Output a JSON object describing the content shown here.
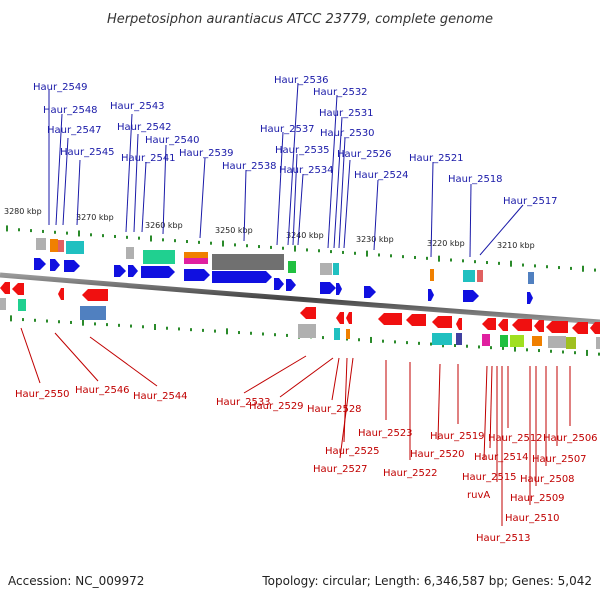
{
  "title": "Herpetosiphon aurantiacus ATCC 23779, complete genome",
  "accession": "Accession: NC_009972",
  "topology": "Topology: circular; Length: 6,346,587 bp; Genes: 5,042",
  "colors": {
    "forward_gene": "#1010e0",
    "reverse_gene": "#f01010",
    "forward_label": "#1a1aa8",
    "reverse_label": "#c00000",
    "backbone": "#666666",
    "tick": "#2a8a2a"
  },
  "ticks": [
    {
      "label": "3280 kbp"
    },
    {
      "label": "3270 kbp"
    },
    {
      "label": "3260 kbp"
    },
    {
      "label": "3250 kbp"
    },
    {
      "label": "3240 kbp"
    },
    {
      "label": "3230 kbp"
    },
    {
      "label": "3220 kbp"
    },
    {
      "label": "3210 kbp"
    }
  ],
  "forward_genes": [
    "Haur_2549",
    "Haur_2548",
    "Haur_2547",
    "Haur_2545",
    "Haur_2543",
    "Haur_2542",
    "Haur_2541",
    "Haur_2540",
    "Haur_2539",
    "Haur_2538",
    "Haur_2537",
    "Haur_2536",
    "Haur_2535",
    "Haur_2534",
    "Haur_2532",
    "Haur_2531",
    "Haur_2530",
    "Haur_2526",
    "Haur_2524",
    "Haur_2521",
    "Haur_2518",
    "Haur_2517"
  ],
  "reverse_genes": [
    "Haur_2550",
    "Haur_2546",
    "Haur_2544",
    "Haur_2533",
    "Haur_2529",
    "Haur_2528",
    "Haur_2525",
    "Haur_2527",
    "Haur_2523",
    "Haur_2522",
    "Haur_2520",
    "Haur_2519",
    "Haur_2515",
    "Haur_2514",
    "ruvA",
    "Haur_2513",
    "Haur_2512",
    "Haur_2510",
    "Haur_2509",
    "Haur_2508",
    "Haur_2507",
    "Haur_2506"
  ]
}
